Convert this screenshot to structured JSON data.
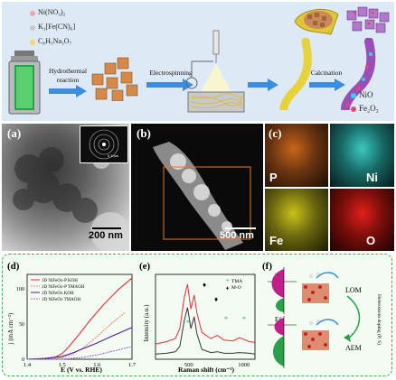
{
  "synthesis": {
    "reagents": [
      "Ni(NO₃)₂",
      "K₃[Fe(CN)₆]",
      "C₆H₅Na₃O₇"
    ],
    "steps": [
      "Hydrothermal",
      "reaction",
      "Electrospinning",
      "Calcination"
    ],
    "products": [
      "NiO",
      "Fe₂O₃"
    ]
  },
  "micrographs": {
    "a": {
      "label": "(a)",
      "scale": "200 nm",
      "inset_scale": "5 1/nm"
    },
    "b": {
      "label": "(b)",
      "scale": "500 nm"
    },
    "c": {
      "label": "(c)",
      "maps": [
        "P",
        "Ni",
        "Fe",
        "O"
      ]
    }
  },
  "panel_d": {
    "label": "(d)",
    "ylabel": "j (mA cm⁻²)",
    "xlabel": "E (V vs. RHE)",
    "xticks": [
      "1.4",
      "1.5",
      "1.6",
      "1.7"
    ],
    "yticks": [
      "0",
      "50",
      "100"
    ],
    "legend": [
      "1D NiFeOx-P KOH",
      "1D NiFeOx-P TMAOH",
      "1D NiFeOx KOH",
      "1D NiFeOx TMAOH"
    ],
    "colors": [
      "#e03030",
      "#f08a6a",
      "#4a1fa0",
      "#9a6fd0"
    ]
  },
  "panel_e": {
    "label": "(e)",
    "ylabel": "Intensity (a.u.)",
    "xlabel": "Raman shift (cm⁻¹)",
    "xticks": [
      "500",
      "1000"
    ],
    "legend": [
      "TMA",
      "M-O"
    ],
    "legend_symbols": [
      "*",
      "♦"
    ]
  },
  "panel_f": {
    "label": "(f)",
    "ef": [
      "Eƒ",
      "Eƒ"
    ],
    "mechanisms": [
      "LOM",
      "AEM"
    ],
    "side_label": "Heteroatom doping (P, S)"
  },
  "chart_data": [
    {
      "type": "line",
      "xlabel": "E (V vs. RHE)",
      "ylabel": "j (mA cm⁻²)",
      "xlim": [
        1.4,
        1.7
      ],
      "ylim": [
        0,
        120
      ],
      "series": [
        {
          "name": "1D NiFeOx-P KOH",
          "x": [
            1.4,
            1.45,
            1.48,
            1.5,
            1.52,
            1.55,
            1.58,
            1.62,
            1.66,
            1.7
          ],
          "y": [
            0,
            1,
            3,
            8,
            18,
            36,
            55,
            78,
            98,
            115
          ]
        },
        {
          "name": "1D NiFeOx-P TMAOH",
          "x": [
            1.4,
            1.45,
            1.5,
            1.53,
            1.56,
            1.6,
            1.64,
            1.68
          ],
          "y": [
            0,
            0,
            2,
            7,
            16,
            32,
            50,
            66
          ]
        },
        {
          "name": "1D NiFeOx KOH",
          "x": [
            1.4,
            1.45,
            1.5,
            1.53,
            1.56,
            1.6,
            1.64,
            1.7
          ],
          "y": [
            0,
            1,
            4,
            9,
            15,
            23,
            32,
            45
          ]
        },
        {
          "name": "1D NiFeOx TMAOH",
          "x": [
            1.4,
            1.5,
            1.55,
            1.6,
            1.65,
            1.7
          ],
          "y": [
            0,
            0,
            2,
            6,
            12,
            18
          ]
        }
      ]
    },
    {
      "type": "line",
      "xlabel": "Raman shift (cm⁻¹)",
      "ylabel": "Intensity (a.u.)",
      "xlim": [
        200,
        1100
      ],
      "series": [
        {
          "name": "",
          "x": [
            200,
            300,
            380,
            420,
            460,
            490,
            520,
            550,
            575,
            620,
            700,
            760,
            820,
            900,
            960,
            1050,
            1100
          ],
          "y": [
            0.15,
            0.18,
            0.22,
            0.35,
            0.75,
            0.92,
            0.6,
            0.78,
            0.55,
            0.3,
            0.22,
            0.26,
            0.2,
            0.19,
            0.23,
            0.18,
            0.17
          ]
        },
        {
          "name": "",
          "x": [
            200,
            300,
            380,
            420,
            460,
            490,
            520,
            550,
            575,
            620,
            700,
            760,
            820,
            900,
            960,
            1050,
            1100
          ],
          "y": [
            0.02,
            0.03,
            0.05,
            0.12,
            0.45,
            0.62,
            0.35,
            0.5,
            0.28,
            0.08,
            0.04,
            0.05,
            0.03,
            0.03,
            0.04,
            0.03,
            0.02
          ]
        }
      ]
    }
  ]
}
